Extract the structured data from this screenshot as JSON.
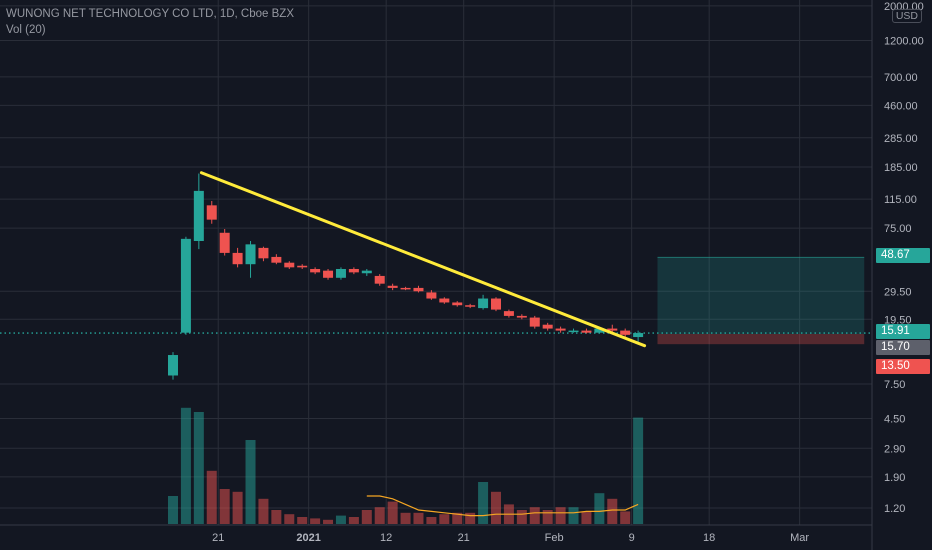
{
  "header": {
    "title": "WUNONG NET TECHNOLOGY CO LTD, 1D, Cboe BZX",
    "volume_label": "Vol (20)",
    "currency": "USD"
  },
  "colors": {
    "background": "#131722",
    "grid": "#2a2e39",
    "up": "#26a69a",
    "down": "#ef5350",
    "trendline": "#ffeb3b",
    "vol_ma": "#f5a623",
    "target_zone": "#26a69a",
    "stop_zone": "#ef5350",
    "price_line": "#26a69a"
  },
  "badges": {
    "target": "48.67",
    "last": "15.91",
    "entry": "15.70",
    "stop": "13.50"
  },
  "chart_data": {
    "type": "candlestick",
    "title": "WUNONG NET TECHNOLOGY CO LTD, 1D, Cboe BZX",
    "y_scale": "log",
    "y_range": [
      1.0,
      2000.0
    ],
    "y_ticks": [
      "2000.00",
      "1200.00",
      "700.00",
      "460.00",
      "285.00",
      "185.00",
      "115.00",
      "75.00",
      "48.67",
      "29.50",
      "19.50",
      "15.91",
      "15.70",
      "13.50",
      "7.50",
      "4.50",
      "2.90",
      "1.90",
      "1.20"
    ],
    "x_ticks": [
      {
        "label": "21",
        "bar": 3.5,
        "bold": false
      },
      {
        "label": "2021",
        "bar": 10.5,
        "bold": true
      },
      {
        "label": "12",
        "bar": 16.5,
        "bold": false
      },
      {
        "label": "21",
        "bar": 22.5,
        "bold": false
      },
      {
        "label": "Feb",
        "bar": 29.5,
        "bold": false
      },
      {
        "label": "9",
        "bar": 35.5,
        "bold": false
      },
      {
        "label": "18",
        "bar": 41.5,
        "bold": false
      },
      {
        "label": "Mar",
        "bar": 48.5,
        "bold": false
      }
    ],
    "candles": [
      {
        "o": 8.5,
        "h": 12.0,
        "l": 8.0,
        "c": 11.5
      },
      {
        "o": 16.0,
        "h": 66.0,
        "l": 15.5,
        "c": 64.0
      },
      {
        "o": 62.0,
        "h": 168.0,
        "l": 55.0,
        "c": 130.0
      },
      {
        "o": 105.0,
        "h": 112.0,
        "l": 80.0,
        "c": 85.0
      },
      {
        "o": 70.0,
        "h": 74.0,
        "l": 50.0,
        "c": 52.0
      },
      {
        "o": 52.0,
        "h": 56.0,
        "l": 42.0,
        "c": 44.0
      },
      {
        "o": 44.0,
        "h": 62.0,
        "l": 36.0,
        "c": 59.0
      },
      {
        "o": 56.0,
        "h": 57.0,
        "l": 46.0,
        "c": 48.0
      },
      {
        "o": 49.0,
        "h": 51.0,
        "l": 44.0,
        "c": 45.0
      },
      {
        "o": 45.0,
        "h": 46.0,
        "l": 41.0,
        "c": 42.0
      },
      {
        "o": 43.0,
        "h": 44.0,
        "l": 41.0,
        "c": 42.0
      },
      {
        "o": 41.0,
        "h": 42.0,
        "l": 38.0,
        "c": 39.0
      },
      {
        "o": 40.0,
        "h": 41.0,
        "l": 35.0,
        "c": 36.0
      },
      {
        "o": 36.0,
        "h": 42.0,
        "l": 35.0,
        "c": 41.0
      },
      {
        "o": 41.0,
        "h": 42.0,
        "l": 38.0,
        "c": 39.0
      },
      {
        "o": 38.5,
        "h": 41.0,
        "l": 37.0,
        "c": 40.0
      },
      {
        "o": 37.0,
        "h": 38.0,
        "l": 32.0,
        "c": 33.0
      },
      {
        "o": 32.0,
        "h": 33.0,
        "l": 30.0,
        "c": 31.0
      },
      {
        "o": 31.0,
        "h": 31.5,
        "l": 30.0,
        "c": 30.5
      },
      {
        "o": 31.0,
        "h": 32.0,
        "l": 29.0,
        "c": 29.5
      },
      {
        "o": 29.0,
        "h": 30.0,
        "l": 26.0,
        "c": 26.5
      },
      {
        "o": 26.5,
        "h": 27.0,
        "l": 24.5,
        "c": 25.0
      },
      {
        "o": 25.0,
        "h": 25.5,
        "l": 23.5,
        "c": 24.0
      },
      {
        "o": 24.0,
        "h": 24.5,
        "l": 23.0,
        "c": 23.5
      },
      {
        "o": 23.0,
        "h": 28.0,
        "l": 22.5,
        "c": 26.5
      },
      {
        "o": 26.5,
        "h": 27.0,
        "l": 22.0,
        "c": 22.5
      },
      {
        "o": 22.0,
        "h": 22.5,
        "l": 20.0,
        "c": 20.5
      },
      {
        "o": 20.5,
        "h": 21.0,
        "l": 19.5,
        "c": 20.0
      },
      {
        "o": 20.0,
        "h": 20.5,
        "l": 17.0,
        "c": 17.5
      },
      {
        "o": 18.0,
        "h": 18.5,
        "l": 16.5,
        "c": 17.0
      },
      {
        "o": 17.0,
        "h": 17.5,
        "l": 16.0,
        "c": 16.5
      },
      {
        "o": 16.5,
        "h": 17.0,
        "l": 16.0,
        "c": 16.5
      },
      {
        "o": 16.5,
        "h": 17.0,
        "l": 15.8,
        "c": 16.0
      },
      {
        "o": 16.0,
        "h": 17.5,
        "l": 15.8,
        "c": 17.0
      },
      {
        "o": 17.0,
        "h": 18.0,
        "l": 16.0,
        "c": 16.5
      },
      {
        "o": 16.5,
        "h": 17.0,
        "l": 15.0,
        "c": 15.5
      },
      {
        "o": 15.0,
        "h": 16.5,
        "l": 14.0,
        "c": 15.91
      }
    ],
    "volume": [
      {
        "v": 0.2,
        "up": true
      },
      {
        "v": 0.83,
        "up": true
      },
      {
        "v": 0.8,
        "up": true
      },
      {
        "v": 0.38,
        "up": false
      },
      {
        "v": 0.25,
        "up": false
      },
      {
        "v": 0.23,
        "up": false
      },
      {
        "v": 0.6,
        "up": true
      },
      {
        "v": 0.18,
        "up": false
      },
      {
        "v": 0.1,
        "up": false
      },
      {
        "v": 0.07,
        "up": false
      },
      {
        "v": 0.05,
        "up": false
      },
      {
        "v": 0.04,
        "up": false
      },
      {
        "v": 0.03,
        "up": false
      },
      {
        "v": 0.06,
        "up": true
      },
      {
        "v": 0.05,
        "up": false
      },
      {
        "v": 0.1,
        "up": false
      },
      {
        "v": 0.12,
        "up": false
      },
      {
        "v": 0.16,
        "up": false
      },
      {
        "v": 0.08,
        "up": false
      },
      {
        "v": 0.08,
        "up": false
      },
      {
        "v": 0.05,
        "up": false
      },
      {
        "v": 0.07,
        "up": false
      },
      {
        "v": 0.08,
        "up": false
      },
      {
        "v": 0.08,
        "up": false
      },
      {
        "v": 0.3,
        "up": true
      },
      {
        "v": 0.23,
        "up": false
      },
      {
        "v": 0.14,
        "up": false
      },
      {
        "v": 0.1,
        "up": false
      },
      {
        "v": 0.12,
        "up": false
      },
      {
        "v": 0.1,
        "up": false
      },
      {
        "v": 0.12,
        "up": false
      },
      {
        "v": 0.12,
        "up": true
      },
      {
        "v": 0.09,
        "up": false
      },
      {
        "v": 0.22,
        "up": true
      },
      {
        "v": 0.18,
        "up": false
      },
      {
        "v": 0.09,
        "up": false
      },
      {
        "v": 0.76,
        "up": true
      }
    ],
    "volume_ma": [
      {
        "bar": 15,
        "v": 0.2
      },
      {
        "bar": 16,
        "v": 0.2
      },
      {
        "bar": 17,
        "v": 0.18
      },
      {
        "bar": 18,
        "v": 0.14
      },
      {
        "bar": 19,
        "v": 0.1
      },
      {
        "bar": 20,
        "v": 0.09
      },
      {
        "bar": 21,
        "v": 0.08
      },
      {
        "bar": 22,
        "v": 0.07
      },
      {
        "bar": 23,
        "v": 0.06
      },
      {
        "bar": 24,
        "v": 0.06
      },
      {
        "bar": 25,
        "v": 0.07
      },
      {
        "bar": 26,
        "v": 0.07
      },
      {
        "bar": 27,
        "v": 0.07
      },
      {
        "bar": 28,
        "v": 0.08
      },
      {
        "bar": 29,
        "v": 0.08
      },
      {
        "bar": 30,
        "v": 0.08
      },
      {
        "bar": 31,
        "v": 0.08
      },
      {
        "bar": 32,
        "v": 0.09
      },
      {
        "bar": 33,
        "v": 0.09
      },
      {
        "bar": 34,
        "v": 0.1
      },
      {
        "bar": 35,
        "v": 0.1
      },
      {
        "bar": 36,
        "v": 0.14
      }
    ],
    "trendline": {
      "from": {
        "bar": 2.2,
        "price": 170.0
      },
      "to": {
        "bar": 36.5,
        "price": 13.2
      }
    },
    "position": {
      "start_bar": 37.5,
      "end_bar": 53.5,
      "target": 48.67,
      "entry": 15.7,
      "stop": 13.5,
      "last": 15.91
    }
  }
}
